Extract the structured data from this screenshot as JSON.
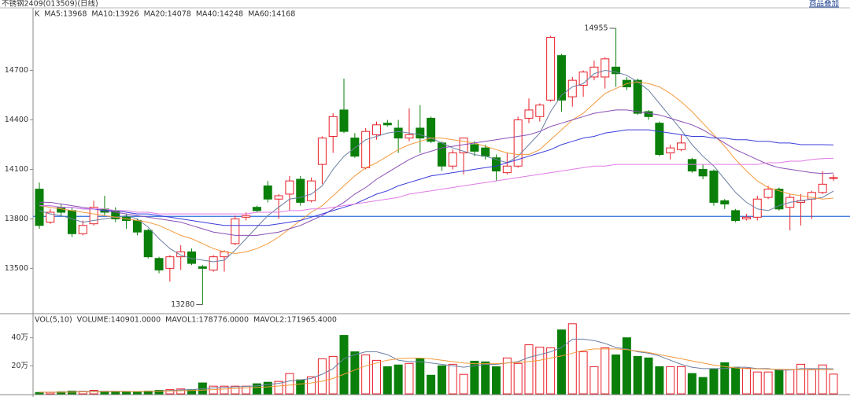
{
  "header": {
    "overlay_link": "商品叠加"
  },
  "chart_data": [
    {
      "type": "candlestick",
      "title": "不锈钢2409(013509)(日线)",
      "legend_label": "K",
      "up_color": "#e8202a",
      "down_color": "#0a7f0a",
      "ylim": [
        13230,
        15060
      ],
      "yticks": [
        13500,
        13800,
        14100,
        14400,
        14700
      ],
      "ref_line": 13815,
      "ref_line_color": "#2d6fdc",
      "open": [
        13980,
        13780,
        13870,
        13850,
        13710,
        13770,
        13860,
        13850,
        13810,
        13790,
        13730,
        13560,
        13500,
        13570,
        13600,
        13510,
        13490,
        13570,
        13650,
        13810,
        13870,
        14000,
        13920,
        13950,
        14040,
        13910,
        14130,
        14300,
        14460,
        14290,
        14110,
        14310,
        14380,
        14350,
        14290,
        14350,
        14410,
        14260,
        14120,
        14200,
        14250,
        14230,
        14170,
        14080,
        14120,
        14410,
        14420,
        14520,
        14790,
        14540,
        14610,
        14660,
        14660,
        14720,
        14640,
        14640,
        14450,
        14380,
        14200,
        14220,
        14160,
        14100,
        14090,
        13910,
        13850,
        13800,
        13810,
        13930,
        13980,
        13870,
        13900,
        13920,
        13960,
        14050
      ],
      "high": [
        14020,
        13860,
        13890,
        13870,
        13790,
        13910,
        13940,
        13870,
        13830,
        13800,
        13740,
        13570,
        13580,
        13640,
        13620,
        13520,
        13580,
        13610,
        13820,
        13840,
        13880,
        14030,
        13950,
        14060,
        14060,
        14050,
        14300,
        14440,
        14650,
        14320,
        14350,
        14390,
        14400,
        14400,
        14470,
        14490,
        14420,
        14270,
        14220,
        14290,
        14270,
        14250,
        14190,
        14200,
        14420,
        14530,
        14500,
        14910,
        14800,
        14660,
        14700,
        14760,
        14780,
        14955,
        14660,
        14650,
        14460,
        14390,
        14250,
        14310,
        14170,
        14130,
        14100,
        13920,
        13860,
        13830,
        13940,
        14000,
        13990,
        13950,
        13950,
        13970,
        14090,
        14070
      ],
      "low": [
        13740,
        13770,
        13820,
        13690,
        13700,
        13760,
        13820,
        13780,
        13740,
        13700,
        13560,
        13470,
        13420,
        13490,
        13520,
        13280,
        13480,
        13480,
        13640,
        13790,
        13840,
        13900,
        13800,
        13850,
        13880,
        13900,
        14010,
        14200,
        14320,
        14170,
        14100,
        14280,
        14360,
        14200,
        14270,
        14200,
        14260,
        14090,
        14100,
        14070,
        14180,
        14160,
        14030,
        14070,
        14110,
        14380,
        14390,
        14510,
        14450,
        14480,
        14540,
        14640,
        14590,
        14600,
        14580,
        14430,
        14400,
        14180,
        14160,
        14210,
        14080,
        14040,
        13880,
        13860,
        13780,
        13790,
        13790,
        13920,
        13850,
        13730,
        13760,
        13800,
        13950,
        14030
      ],
      "close": [
        13760,
        13840,
        13840,
        13710,
        13760,
        13870,
        13840,
        13800,
        13790,
        13720,
        13570,
        13490,
        13570,
        13600,
        13530,
        13500,
        13570,
        13600,
        13800,
        13820,
        13850,
        13920,
        13940,
        14030,
        13900,
        14030,
        14290,
        14420,
        14330,
        14180,
        14330,
        14370,
        14370,
        14290,
        14310,
        14290,
        14270,
        14120,
        14200,
        14290,
        14210,
        14180,
        14090,
        14120,
        14400,
        14460,
        14490,
        14900,
        14520,
        14640,
        14690,
        14720,
        14770,
        14680,
        14600,
        14440,
        14420,
        14190,
        14230,
        14260,
        14090,
        14060,
        13900,
        13890,
        13790,
        13810,
        13920,
        13980,
        13860,
        13930,
        13910,
        13960,
        14010,
        14050
      ],
      "series": [
        {
          "name": "MA5:13968",
          "color": "#6b7fa3",
          "values": [
            13850,
            13830,
            13820,
            13800,
            13780,
            13790,
            13800,
            13810,
            13820,
            13800,
            13750,
            13680,
            13620,
            13580,
            13560,
            13550,
            13540,
            13550,
            13610,
            13680,
            13750,
            13820,
            13870,
            13920,
            13930,
            13950,
            14000,
            14100,
            14180,
            14230,
            14280,
            14300,
            14320,
            14330,
            14320,
            14310,
            14290,
            14260,
            14230,
            14210,
            14190,
            14180,
            14160,
            14140,
            14180,
            14250,
            14320,
            14450,
            14550,
            14600,
            14620,
            14680,
            14700,
            14690,
            14670,
            14630,
            14580,
            14500,
            14420,
            14340,
            14250,
            14180,
            14120,
            14040,
            13960,
            13900,
            13860,
            13850,
            13880,
            13900,
            13910,
            13920,
            13930,
            13968
          ]
        },
        {
          "name": "MA10:13926",
          "color": "#f39a3c",
          "values": [
            13880,
            13870,
            13860,
            13850,
            13840,
            13830,
            13820,
            13810,
            13800,
            13790,
            13780,
            13760,
            13730,
            13700,
            13680,
            13650,
            13620,
            13600,
            13590,
            13600,
            13620,
            13650,
            13690,
            13740,
            13790,
            13840,
            13880,
            13940,
            14000,
            14060,
            14110,
            14140,
            14180,
            14220,
            14250,
            14270,
            14290,
            14290,
            14280,
            14270,
            14260,
            14240,
            14220,
            14200,
            14190,
            14190,
            14220,
            14280,
            14340,
            14400,
            14440,
            14500,
            14560,
            14590,
            14620,
            14630,
            14620,
            14600,
            14560,
            14510,
            14450,
            14380,
            14310,
            14240,
            14160,
            14090,
            14030,
            13990,
            13970,
            13950,
            13940,
            13930,
            13920,
            13926
          ]
        },
        {
          "name": "MA20:14078",
          "color": "#8a4fb5",
          "values": [
            13900,
            13900,
            13890,
            13880,
            13870,
            13860,
            13850,
            13840,
            13830,
            13820,
            13810,
            13800,
            13790,
            13780,
            13760,
            13740,
            13720,
            13710,
            13700,
            13700,
            13700,
            13710,
            13720,
            13740,
            13760,
            13790,
            13820,
            13860,
            13900,
            13950,
            13990,
            14040,
            14080,
            14120,
            14160,
            14190,
            14210,
            14230,
            14240,
            14250,
            14260,
            14270,
            14280,
            14290,
            14300,
            14310,
            14330,
            14360,
            14380,
            14400,
            14420,
            14440,
            14450,
            14460,
            14460,
            14450,
            14440,
            14430,
            14410,
            14390,
            14370,
            14340,
            14300,
            14260,
            14220,
            14190,
            14160,
            14130,
            14110,
            14100,
            14090,
            14080,
            14075,
            14078
          ]
        },
        {
          "name": "MA40:14248",
          "color": "#3b3bdc",
          "values": [
            13880,
            13880,
            13870,
            13870,
            13860,
            13860,
            13850,
            13850,
            13840,
            13830,
            13830,
            13820,
            13810,
            13800,
            13790,
            13780,
            13770,
            13760,
            13760,
            13760,
            13760,
            13760,
            13770,
            13780,
            13790,
            13810,
            13830,
            13850,
            13870,
            13890,
            13920,
            13950,
            13970,
            14000,
            14020,
            14040,
            14060,
            14070,
            14080,
            14090,
            14100,
            14110,
            14120,
            14140,
            14160,
            14180,
            14200,
            14220,
            14250,
            14270,
            14290,
            14300,
            14320,
            14330,
            14340,
            14340,
            14340,
            14330,
            14320,
            14310,
            14300,
            14300,
            14290,
            14290,
            14280,
            14280,
            14270,
            14270,
            14260,
            14260,
            14250,
            14250,
            14250,
            14248
          ]
        },
        {
          "name": "MA60:14168",
          "color": "#e07be6",
          "values": [
            13880,
            13880,
            13870,
            13870,
            13860,
            13860,
            13860,
            13850,
            13850,
            13840,
            13840,
            13830,
            13830,
            13830,
            13830,
            13830,
            13830,
            13830,
            13830,
            13830,
            13840,
            13840,
            13840,
            13850,
            13850,
            13860,
            13860,
            13870,
            13880,
            13890,
            13900,
            13910,
            13920,
            13930,
            13950,
            13960,
            13970,
            13980,
            13990,
            14000,
            14010,
            14020,
            14030,
            14040,
            14050,
            14060,
            14070,
            14080,
            14090,
            14100,
            14110,
            14120,
            14120,
            14130,
            14130,
            14130,
            14130,
            14130,
            14130,
            14130,
            14130,
            14130,
            14130,
            14130,
            14130,
            14130,
            14130,
            14140,
            14140,
            14150,
            14150,
            14160,
            14165,
            14168
          ]
        }
      ]
    },
    {
      "type": "bar",
      "title": "VOL(5,10)",
      "volume_label": "VOLUME:140901.0000",
      "ylim": [
        0,
        555000
      ],
      "yticks": [
        {
          "value": 200000,
          "label": "20万"
        },
        {
          "value": 400000,
          "label": "40万"
        }
      ],
      "values": [
        10000,
        10000,
        15000,
        20000,
        18000,
        25000,
        15000,
        15000,
        15000,
        15000,
        20000,
        25000,
        30000,
        35000,
        30000,
        78000,
        55000,
        55000,
        55000,
        55000,
        72000,
        83000,
        89000,
        145000,
        100000,
        122000,
        250000,
        267000,
        417000,
        300000,
        278000,
        239000,
        194000,
        206000,
        217000,
        250000,
        133000,
        200000,
        211000,
        139000,
        233000,
        228000,
        194000,
        256000,
        217000,
        350000,
        333000,
        328000,
        456000,
        500000,
        300000,
        194000,
        328000,
        278000,
        400000,
        267000,
        256000,
        194000,
        194000,
        194000,
        145000,
        117000,
        178000,
        222000,
        189000,
        183000,
        156000,
        156000,
        172000,
        172000,
        211000,
        172000,
        206000,
        140901
      ],
      "series": [
        {
          "name": "MAVOL1:178776.0000",
          "color": "#6b7fa3",
          "values": [
            12000,
            12000,
            13000,
            15000,
            17000,
            18000,
            19000,
            19000,
            18000,
            17000,
            18000,
            20000,
            24000,
            28000,
            30000,
            36000,
            42000,
            47000,
            50000,
            53000,
            58000,
            66000,
            75000,
            92000,
            100000,
            110000,
            140000,
            180000,
            250000,
            280000,
            300000,
            300000,
            280000,
            240000,
            230000,
            230000,
            220000,
            210000,
            200000,
            190000,
            200000,
            210000,
            210000,
            220000,
            230000,
            260000,
            280000,
            300000,
            330000,
            390000,
            390000,
            380000,
            360000,
            330000,
            320000,
            300000,
            290000,
            270000,
            240000,
            210000,
            190000,
            180000,
            180000,
            180000,
            190000,
            190000,
            180000,
            180000,
            170000,
            170000,
            180000,
            180000,
            180000,
            178776
          ]
        },
        {
          "name": "MAVOL2:171965.4000",
          "color": "#f39a3c",
          "values": [
            12000,
            12000,
            12000,
            13000,
            14000,
            15000,
            16000,
            17000,
            17000,
            17000,
            18000,
            19000,
            20000,
            22000,
            24000,
            27000,
            30000,
            34000,
            38000,
            42000,
            46000,
            50000,
            56000,
            62000,
            70000,
            78000,
            90000,
            110000,
            140000,
            170000,
            200000,
            220000,
            240000,
            250000,
            255000,
            255000,
            250000,
            240000,
            230000,
            220000,
            215000,
            215000,
            215000,
            220000,
            225000,
            230000,
            240000,
            255000,
            270000,
            290000,
            310000,
            320000,
            320000,
            320000,
            315000,
            305000,
            295000,
            280000,
            265000,
            250000,
            235000,
            220000,
            205000,
            195000,
            185000,
            180000,
            178000,
            176000,
            175000,
            174000,
            173000,
            172000,
            172000,
            171965
          ]
        }
      ]
    }
  ]
}
